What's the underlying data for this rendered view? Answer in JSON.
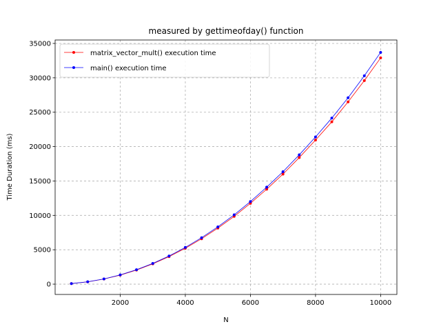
{
  "chart_data": {
    "type": "line",
    "title": "measured by gettimeofday() function",
    "xlabel": "N",
    "ylabel": "Time Duration (ms)",
    "xlim": [
      0,
      10500
    ],
    "ylim": [
      -1500,
      35500
    ],
    "xticks": [
      2000,
      4000,
      6000,
      8000,
      10000
    ],
    "yticks": [
      0,
      5000,
      10000,
      15000,
      20000,
      25000,
      30000,
      35000
    ],
    "grid": true,
    "legend_position": "top-left",
    "x": [
      500,
      1000,
      1500,
      2000,
      2500,
      3000,
      3500,
      4000,
      4500,
      5000,
      5500,
      6000,
      6500,
      7000,
      7500,
      8000,
      8500,
      9000,
      9500,
      10000
    ],
    "series": [
      {
        "name": "matrix_vector_mult() execution time",
        "color": "#ff0000",
        "values": [
          80,
          330,
          740,
          1310,
          2050,
          2950,
          4000,
          5220,
          6600,
          8150,
          9850,
          11750,
          13800,
          16000,
          18400,
          20950,
          23600,
          26500,
          29600,
          32900
        ]
      },
      {
        "name": "main() execution time",
        "color": "#0000ff",
        "values": [
          85,
          340,
          760,
          1340,
          2100,
          3010,
          4090,
          5340,
          6750,
          8330,
          10080,
          12010,
          14100,
          16350,
          18800,
          21400,
          24150,
          27100,
          30300,
          33700
        ]
      }
    ]
  }
}
